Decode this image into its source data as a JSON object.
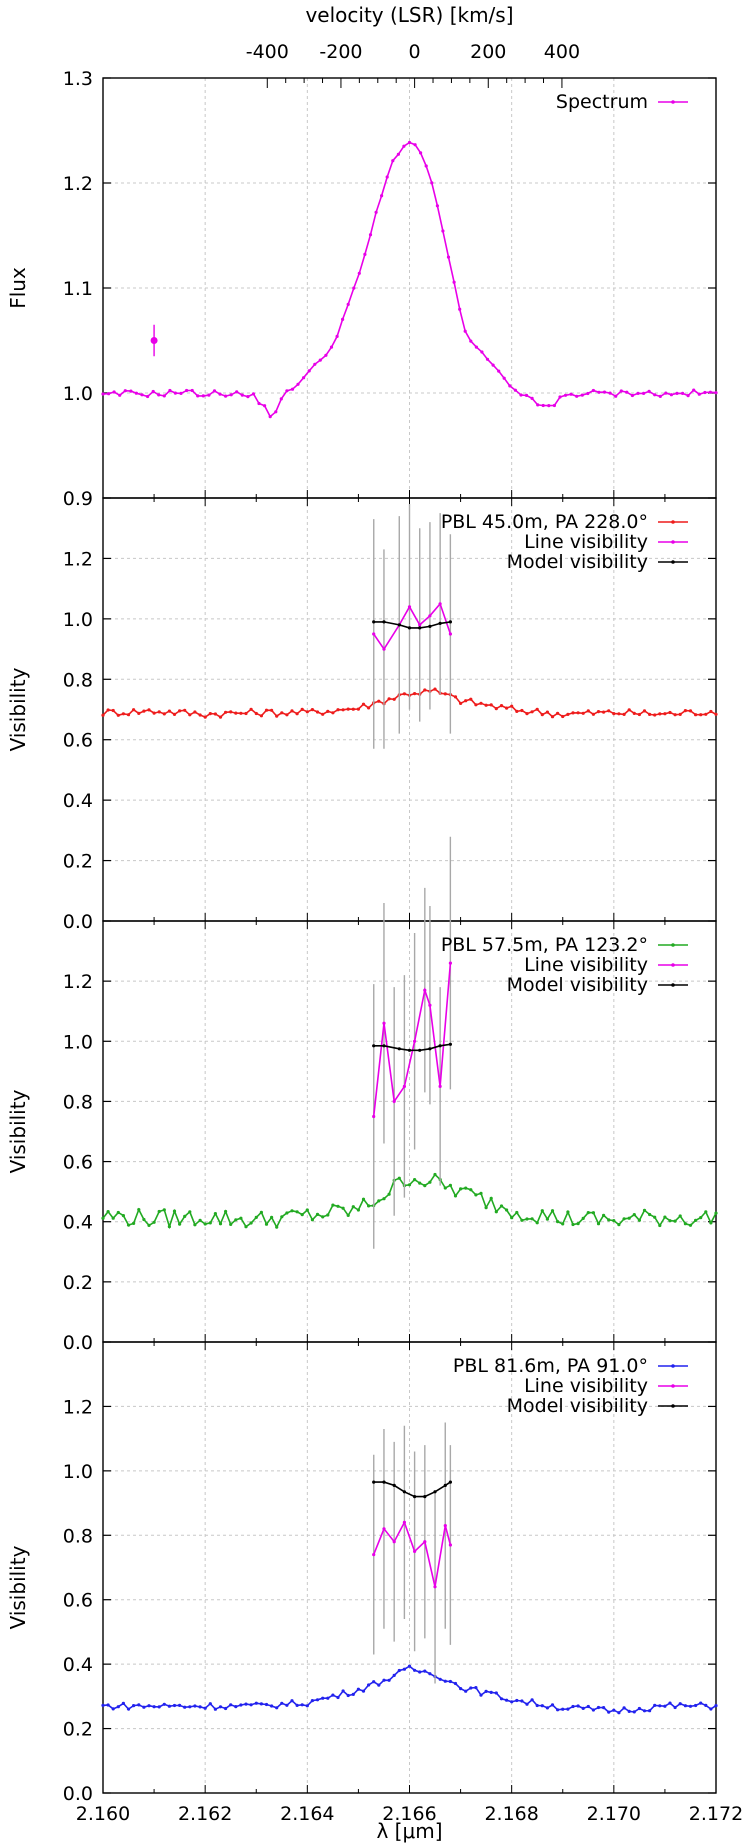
{
  "chart_data": [
    {
      "type": "line",
      "ylabel": "Flux",
      "ylim": [
        0.9,
        1.3
      ],
      "yticks": [
        "0.9",
        "1.0",
        "1.1",
        "1.2",
        "1.3"
      ],
      "xlim": [
        2.16,
        2.172
      ],
      "grid": true,
      "legend_position": "top-right",
      "top_axis": {
        "label": "velocity (LSR) [km/s]",
        "ticks": [
          "-400",
          "-200",
          "0",
          "200",
          "400"
        ],
        "tick_values": [
          -400,
          -200,
          0,
          200,
          400
        ],
        "zero_at_um": 2.1661,
        "um_per_100kms": 0.000721
      },
      "series": [
        {
          "name": "Spectrum",
          "color": "#e800e8",
          "x": [
            2.16,
            2.1605,
            2.161,
            2.1615,
            2.162,
            2.1625,
            2.163,
            2.1633,
            2.1636,
            2.164,
            2.1645,
            2.165,
            2.1654,
            2.1657,
            2.166,
            2.1662,
            2.1665,
            2.1668,
            2.1671,
            2.1675,
            2.168,
            2.1685,
            2.1688,
            2.169,
            2.1695,
            2.17,
            2.1705,
            2.171,
            2.1715,
            2.172
          ],
          "y": [
            0.997,
            1.0,
            0.999,
            1.001,
            0.999,
            1.0,
            0.996,
            0.978,
            1.0,
            1.018,
            1.045,
            1.11,
            1.18,
            1.225,
            1.24,
            1.232,
            1.19,
            1.12,
            1.055,
            1.033,
            1.005,
            0.99,
            0.985,
            0.998,
            1.0,
            0.999,
            1.001,
            0.998,
            1.0,
            0.999
          ]
        }
      ],
      "error_point": {
        "x": 2.161,
        "y": 1.05,
        "err": 0.015,
        "color": "#e800e8"
      }
    },
    {
      "type": "line",
      "ylabel": "Visibility",
      "ylim": [
        0.0,
        1.4
      ],
      "yticks": [
        "0.0",
        "0.2",
        "0.4",
        "0.6",
        "0.8",
        "1.0",
        "1.2"
      ],
      "xlim": [
        2.16,
        2.172
      ],
      "grid": true,
      "legend_position": "top-right",
      "series": [
        {
          "name": "PBL 45.0m, PA 228.0°",
          "color": "#ee1c1c",
          "x": [
            2.16,
            2.161,
            2.162,
            2.163,
            2.164,
            2.165,
            2.1655,
            2.166,
            2.1665,
            2.167,
            2.168,
            2.169,
            2.17,
            2.171,
            2.172
          ],
          "y": [
            0.69,
            0.695,
            0.685,
            0.69,
            0.69,
            0.705,
            0.73,
            0.755,
            0.76,
            0.73,
            0.7,
            0.685,
            0.69,
            0.685,
            0.695
          ],
          "jitter": 0.012
        },
        {
          "name": "Line visibility",
          "color": "#e800e8",
          "x": [
            2.1653,
            2.1655,
            2.1658,
            2.166,
            2.1662,
            2.1664,
            2.1666,
            2.1668
          ],
          "y": [
            0.95,
            0.9,
            0.98,
            1.04,
            0.98,
            1.01,
            1.05,
            0.95
          ],
          "err": [
            0.38,
            0.33,
            0.36,
            0.34,
            0.32,
            0.31,
            0.3,
            0.33
          ]
        },
        {
          "name": "Model visibility",
          "color": "#000000",
          "x": [
            2.1653,
            2.1655,
            2.1658,
            2.166,
            2.1662,
            2.1664,
            2.1666,
            2.1668
          ],
          "y": [
            0.99,
            0.99,
            0.98,
            0.97,
            0.97,
            0.975,
            0.985,
            0.99
          ]
        }
      ]
    },
    {
      "type": "line",
      "ylabel": "Visibility",
      "ylim": [
        0.0,
        1.4
      ],
      "yticks": [
        "0.0",
        "0.2",
        "0.4",
        "0.6",
        "0.8",
        "1.0",
        "1.2"
      ],
      "xlim": [
        2.16,
        2.172
      ],
      "grid": true,
      "legend_position": "top-right",
      "series": [
        {
          "name": "PBL 57.5m, PA 123.2°",
          "color": "#22aa22",
          "x": [
            2.16,
            2.161,
            2.162,
            2.163,
            2.164,
            2.165,
            2.1655,
            2.166,
            2.1665,
            2.167,
            2.168,
            2.169,
            2.17,
            2.171,
            2.172
          ],
          "y": [
            0.42,
            0.41,
            0.415,
            0.405,
            0.42,
            0.44,
            0.49,
            0.55,
            0.53,
            0.5,
            0.44,
            0.41,
            0.405,
            0.415,
            0.41
          ],
          "jitter": 0.03
        },
        {
          "name": "Line visibility",
          "color": "#e800e8",
          "x": [
            2.1653,
            2.1655,
            2.1657,
            2.1659,
            2.1661,
            2.1663,
            2.1664,
            2.1666,
            2.1668
          ],
          "y": [
            0.75,
            1.06,
            0.8,
            0.85,
            1.0,
            1.17,
            1.12,
            0.85,
            1.26
          ],
          "err": [
            0.44,
            0.4,
            0.38,
            0.37,
            0.36,
            0.34,
            0.33,
            0.33,
            0.42
          ]
        },
        {
          "name": "Model visibility",
          "color": "#000000",
          "x": [
            2.1653,
            2.1655,
            2.1658,
            2.166,
            2.1662,
            2.1664,
            2.1666,
            2.1668
          ],
          "y": [
            0.985,
            0.985,
            0.975,
            0.97,
            0.97,
            0.975,
            0.985,
            0.99
          ]
        }
      ]
    },
    {
      "type": "line",
      "ylabel": "Visibility",
      "ylim": [
        0.0,
        1.4
      ],
      "yticks": [
        "0.0",
        "0.2",
        "0.4",
        "0.6",
        "0.8",
        "1.0",
        "1.2"
      ],
      "xlim": [
        2.16,
        2.172
      ],
      "xticks": [
        "2.160",
        "2.162",
        "2.164",
        "2.166",
        "2.168",
        "2.170",
        "2.172"
      ],
      "xlabel": "λ [μm]",
      "grid": true,
      "legend_position": "top-right",
      "series": [
        {
          "name": "PBL 81.6m, PA   91.0°",
          "color": "#2222ee",
          "x": [
            2.16,
            2.161,
            2.162,
            2.163,
            2.164,
            2.165,
            2.1655,
            2.166,
            2.1665,
            2.167,
            2.168,
            2.169,
            2.17,
            2.171,
            2.172
          ],
          "y": [
            0.27,
            0.27,
            0.27,
            0.27,
            0.28,
            0.32,
            0.35,
            0.385,
            0.37,
            0.33,
            0.29,
            0.265,
            0.255,
            0.27,
            0.27
          ],
          "jitter": 0.01
        },
        {
          "name": "Line visibility",
          "color": "#e800e8",
          "x": [
            2.1653,
            2.1655,
            2.1657,
            2.1659,
            2.1661,
            2.1663,
            2.1665,
            2.1667,
            2.1668
          ],
          "y": [
            0.74,
            0.82,
            0.78,
            0.84,
            0.75,
            0.78,
            0.64,
            0.83,
            0.77
          ],
          "err": [
            0.31,
            0.31,
            0.31,
            0.3,
            0.31,
            0.3,
            0.3,
            0.32,
            0.31
          ]
        },
        {
          "name": "Model visibility",
          "color": "#000000",
          "x": [
            2.1653,
            2.1655,
            2.1657,
            2.1659,
            2.1661,
            2.1663,
            2.1665,
            2.1667,
            2.1668
          ],
          "y": [
            0.965,
            0.965,
            0.955,
            0.935,
            0.92,
            0.92,
            0.935,
            0.955,
            0.965
          ]
        }
      ]
    }
  ]
}
